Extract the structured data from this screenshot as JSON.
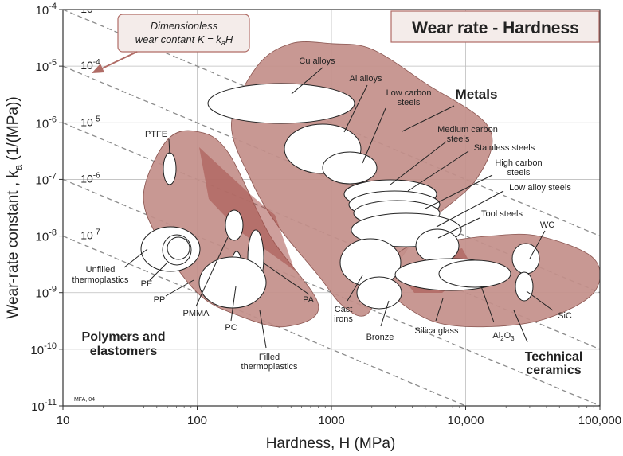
{
  "chart_data": {
    "type": "scatter",
    "title": "Wear rate - Hardness",
    "xlabel": "Hardness, H (MPa)",
    "ylabel_main": "Wear-rate constant , k",
    "ylabel_sub": "a",
    "ylabel_unit": " (1/(MPa))",
    "x_scale": "log",
    "y_scale": "log",
    "xlim": [
      10,
      100000
    ],
    "ylim": [
      1e-11,
      0.0001
    ],
    "grid": true,
    "x_ticks": [
      {
        "value": 10,
        "label": "10"
      },
      {
        "value": 100,
        "label": "100"
      },
      {
        "value": 1000,
        "label": "1000"
      },
      {
        "value": 10000,
        "label": "10,000"
      },
      {
        "value": 100000,
        "label": "100,000"
      }
    ],
    "y_ticks": [
      {
        "value": 0.0001,
        "base": "10",
        "exp": "-4"
      },
      {
        "value": 1e-05,
        "base": "10",
        "exp": "-5"
      },
      {
        "value": 1e-06,
        "base": "10",
        "exp": "-6"
      },
      {
        "value": 1e-07,
        "base": "10",
        "exp": "-7"
      },
      {
        "value": 1e-08,
        "base": "10",
        "exp": "-8"
      },
      {
        "value": 1e-09,
        "base": "10",
        "exp": "-9"
      },
      {
        "value": 1e-10,
        "base": "10",
        "exp": "-10"
      },
      {
        "value": 1e-11,
        "base": "10",
        "exp": "-11"
      }
    ],
    "guide_lines": [
      {
        "K": 0.001,
        "base": "10",
        "exp": "-3"
      },
      {
        "K": 0.0001,
        "base": "10",
        "exp": "-4"
      },
      {
        "K": 1e-05,
        "base": "10",
        "exp": "-5"
      },
      {
        "K": 1e-06,
        "base": "10",
        "exp": "-6"
      },
      {
        "K": 1e-07,
        "base": "10",
        "exp": "-7"
      }
    ],
    "guide_annotation": {
      "line1": "Dimensionless",
      "line2_pre": "wear contant K = k",
      "line2_sub": "a",
      "line2_post": "H"
    },
    "families": [
      {
        "name": "Metals",
        "color": "#c38f8a",
        "polygon": [
          [
            280,
            1e-05
          ],
          [
            500,
            2.5e-05
          ],
          [
            1000,
            2.5e-05
          ],
          [
            2000,
            2e-05
          ],
          [
            5000,
            5e-06
          ],
          [
            15000,
            8e-07
          ],
          [
            12000,
            1e-07
          ],
          [
            5000,
            1.5e-08
          ],
          [
            2500,
            1.5e-09
          ],
          [
            1800,
            4e-10
          ],
          [
            1200,
            6e-10
          ],
          [
            800,
            2e-09
          ],
          [
            400,
            1.5e-08
          ],
          [
            250,
            1e-07
          ],
          [
            180,
            1e-06
          ]
        ]
      },
      {
        "name": "Polymers and elastomers",
        "color": "#c38f8a",
        "polygon": [
          [
            60,
            5e-07
          ],
          [
            100,
            7e-07
          ],
          [
            170,
            3e-07
          ],
          [
            350,
            1e-08
          ],
          [
            800,
            6e-10
          ],
          [
            450,
            2.5e-10
          ],
          [
            200,
            4e-10
          ],
          [
            100,
            1e-09
          ],
          [
            50,
            1e-08
          ],
          [
            40,
            6e-08
          ]
        ]
      },
      {
        "name": "Technical ceramics",
        "color": "#c38f8a",
        "polygon": [
          [
            3500,
            6e-09
          ],
          [
            7000,
            8e-09
          ],
          [
            15000,
            1e-08
          ],
          [
            35000,
            1e-08
          ],
          [
            90000,
            4e-09
          ],
          [
            90000,
            1e-09
          ],
          [
            40000,
            3.5e-10
          ],
          [
            15000,
            2.5e-10
          ],
          [
            6000,
            3e-10
          ],
          [
            3000,
            8e-10
          ],
          [
            2500,
            2e-09
          ]
        ]
      }
    ],
    "materials": [
      {
        "name": "Cu alloys",
        "x": 700,
        "y": 1.1e-05
      },
      {
        "name": "Al alloys",
        "x": 1100,
        "y": 1e-06
      },
      {
        "name": "Low carbon steels",
        "x": 1500,
        "y": 2e-07
      },
      {
        "name": "Medium carbon steels",
        "x": 2500,
        "y": 5e-08
      },
      {
        "name": "Stainless steels",
        "x": 2500,
        "y": 2.2e-08
      },
      {
        "name": "High carbon steels",
        "x": 2500,
        "y": 1.1e-08
      },
      {
        "name": "Low alloy steels",
        "x": 3000,
        "y": 5e-09
      },
      {
        "name": "Tool steels",
        "x": 8000,
        "y": 4e-09
      },
      {
        "name": "Cast irons",
        "x": 1500,
        "y": 2e-09
      },
      {
        "name": "Bronze",
        "x": 1800,
        "y": 7e-10
      },
      {
        "name": "Silica glass",
        "x": 6000,
        "y": 6e-10
      },
      {
        "name": "Al2O3",
        "x": 12000,
        "y": 1.2e-09
      },
      {
        "name": "WC",
        "x": 30000,
        "y": 2.5e-09
      },
      {
        "name": "SiC",
        "x": 28000,
        "y": 6e-10
      },
      {
        "name": "PTFE",
        "x": 60,
        "y": 3e-07
      },
      {
        "name": "Unfilled thermoplastics",
        "x": 70,
        "y": 3e-09
      },
      {
        "name": "PE",
        "x": 80,
        "y": 3e-09
      },
      {
        "name": "PP",
        "x": 90,
        "y": 3e-09
      },
      {
        "name": "PMMA",
        "x": 190,
        "y": 1.5e-08
      },
      {
        "name": "PC",
        "x": 200,
        "y": 2e-09
      },
      {
        "name": "PA",
        "x": 250,
        "y": 3e-09
      },
      {
        "name": "Filled thermoplastics",
        "x": 150,
        "y": 1e-09
      }
    ],
    "labels": {
      "cu": "Cu alloys",
      "al": "Al alloys",
      "lcs1": "Low carbon",
      "lcs2": "steels",
      "metals": "Metals",
      "mcs1": "Medium carbon",
      "mcs2": "steels",
      "ss": "Stainless steels",
      "hcs1": "High carbon",
      "hcs2": "steels",
      "las": "Low alloy steels",
      "tool": "Tool steels",
      "wc": "WC",
      "sic": "SiC",
      "cast1": "Cast",
      "cast2": "irons",
      "bronze": "Bronze",
      "silica": "Silica glass",
      "al2o3_pre": "Al",
      "al2o3_sub1": "2",
      "al2o3_mid": "O",
      "al2o3_sub2": "3",
      "tech1": "Technical",
      "tech2": "ceramics",
      "ptfe": "PTFE",
      "unf1": "Unfilled",
      "unf2": "thermoplastics",
      "pe": "PE",
      "pp": "PP",
      "pmma": "PMMA",
      "pc": "PC",
      "pa": "PA",
      "poly1": "Polymers and",
      "poly2": "elastomers",
      "fill1": "Filled",
      "fill2": "thermoplastics",
      "credit": "MFA, 04"
    }
  }
}
